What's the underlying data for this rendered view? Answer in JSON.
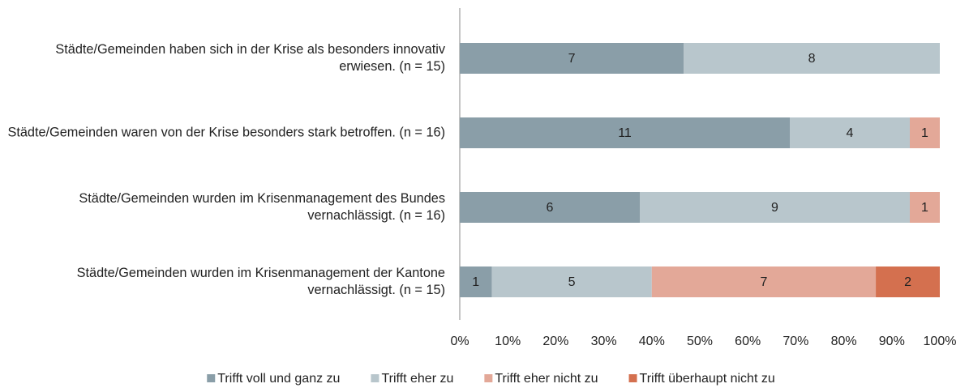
{
  "chart_data": {
    "type": "bar",
    "orientation": "horizontal",
    "stack": "percent",
    "categories": [
      "Städte/Gemeinden haben sich in der Krise als besonders innovativ erwiesen. (n = 15)",
      "Städte/Gemeinden waren von der Krise besonders stark betroffen. (n = 16)",
      "Städte/Gemeinden wurden im Krisenmanagement des Bundes vernachlässigt. (n = 16)",
      "Städte/Gemeinden wurden im Krisenmanagement der Kantone vernachlässigt. (n = 15)"
    ],
    "series": [
      {
        "name": "Trifft voll und ganz zu",
        "color": "#8a9ea8",
        "values": [
          7,
          11,
          6,
          1
        ]
      },
      {
        "name": "Trifft eher zu",
        "color": "#b8c6cc",
        "values": [
          8,
          4,
          9,
          5
        ]
      },
      {
        "name": "Trifft eher nicht zu",
        "color": "#e3a898",
        "values": [
          null,
          1,
          1,
          7
        ]
      },
      {
        "name": "Trifft überhaupt nicht zu",
        "color": "#d4704f",
        "values": [
          null,
          null,
          null,
          2
        ]
      }
    ],
    "xlim": [
      0,
      100
    ],
    "xticks": [
      {
        "value": 0,
        "label": "0%"
      },
      {
        "value": 10,
        "label": "10%"
      },
      {
        "value": 20,
        "label": "20%"
      },
      {
        "value": 30,
        "label": "30%"
      },
      {
        "value": 40,
        "label": "40%"
      },
      {
        "value": 50,
        "label": "50%"
      },
      {
        "value": 60,
        "label": "60%"
      },
      {
        "value": 70,
        "label": "70%"
      },
      {
        "value": 80,
        "label": "80%"
      },
      {
        "value": 90,
        "label": "90%"
      },
      {
        "value": 100,
        "label": "100%"
      }
    ],
    "legend": "bottom"
  }
}
